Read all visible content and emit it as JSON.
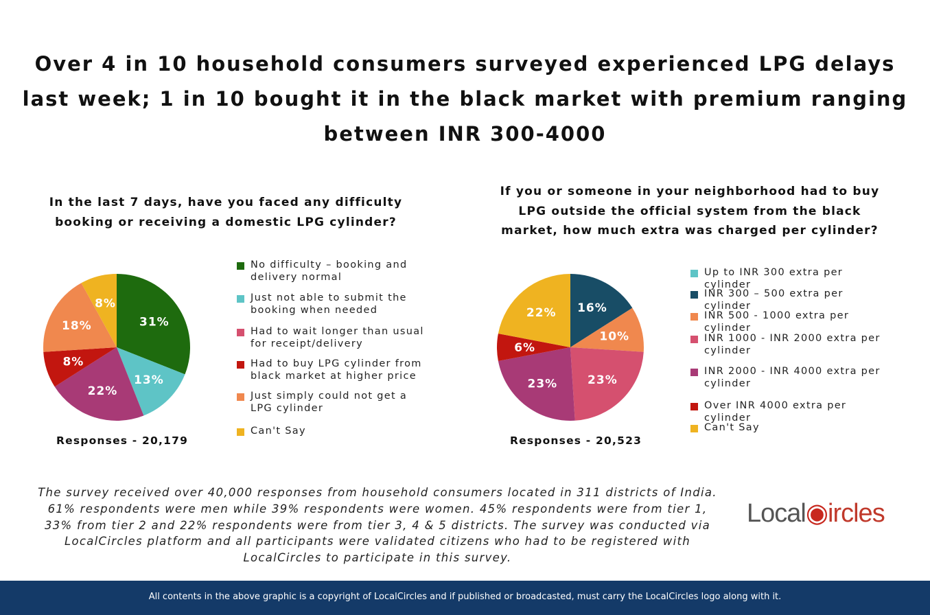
{
  "title_lines": [
    "Over 4 in 10 household consumers surveyed experienced LPG delays",
    "last week; 1 in 10 bought it in the black market with premium ranging",
    "between INR 300-4000"
  ],
  "chart_data": [
    {
      "type": "pie",
      "title_lines": [
        "In the last 7 days, have you faced any difficulty",
        "booking or receiving a domestic LPG cylinder?"
      ],
      "responses": "Responses - 20,179",
      "legend_position": "right",
      "slices": [
        {
          "label": "No difficulty – booking and delivery normal",
          "value": 31,
          "color": "#1e6b0e",
          "legend_color": "#1e6b0e"
        },
        {
          "label": "Just not able to submit the booking when needed",
          "value": 13,
          "color": "#5ec4c6",
          "legend_color": "#5ec4c6"
        },
        {
          "label": "Had to wait longer than usual for receipt/delivery",
          "value": 22,
          "color": "#a83a76",
          "legend_color": "#d5506f"
        },
        {
          "label": "Had to buy LPG cylinder from black market at higher price",
          "value": 8,
          "color": "#c2160f",
          "legend_color": "#c2160f"
        },
        {
          "label": "Just simply could not get a LPG cylinder",
          "value": 18,
          "color": "#f0884e",
          "legend_color": "#f0884e"
        },
        {
          "label": "Can't Say",
          "value": 8,
          "color": "#efb321",
          "legend_color": "#efb321"
        }
      ]
    },
    {
      "type": "pie",
      "title_lines": [
        "If you or someone in your neighborhood had to buy",
        "LPG outside the official system from the black",
        "market, how much extra was charged per cylinder?"
      ],
      "responses": "Responses - 20,523",
      "legend_position": "right",
      "slices": [
        {
          "label": "Up to INR 300 extra per cylinder",
          "value": 0,
          "color": "#5ec4c6",
          "legend_color": "#5ec4c6"
        },
        {
          "label": "INR 300 – 500 extra per cylinder",
          "value": 16,
          "color": "#184d66",
          "legend_color": "#184d66"
        },
        {
          "label": "INR 500 - 1000 extra per cylinder",
          "value": 10,
          "color": "#f0884e",
          "legend_color": "#f0884e"
        },
        {
          "label": "INR 1000 - INR 2000 extra per cylinder",
          "value": 23,
          "color": "#d5506f",
          "legend_color": "#d5506f"
        },
        {
          "label": "INR 2000 - INR 4000 extra per cylinder",
          "value": 23,
          "color": "#a83a76",
          "legend_color": "#a83a76"
        },
        {
          "label": "Over INR 4000 extra per cylinder",
          "value": 6,
          "color": "#c2160f",
          "legend_color": "#c2160f"
        },
        {
          "label": "Can't Say",
          "value": 22,
          "color": "#efb321",
          "legend_color": "#efb321"
        }
      ]
    }
  ],
  "note_lines": [
    "The survey received over 40,000 responses from household consumers located in 311 districts of India.",
    "61% respondents were men while 39% respondents were women. 45% respondents were from tier 1,",
    "33% from tier 2 and 22% respondents were from tier 3, 4 & 5 districts. The survey was conducted via",
    "LocalCircles platform and all participants were validated citizens who had to be registered with",
    "LocalCircles to participate in this survey."
  ],
  "logo": {
    "text": "LocalCircles"
  },
  "footer": "All contents in the above graphic is a copyright of LocalCircles and if published or broadcasted, must carry the LocalCircles logo along with it."
}
